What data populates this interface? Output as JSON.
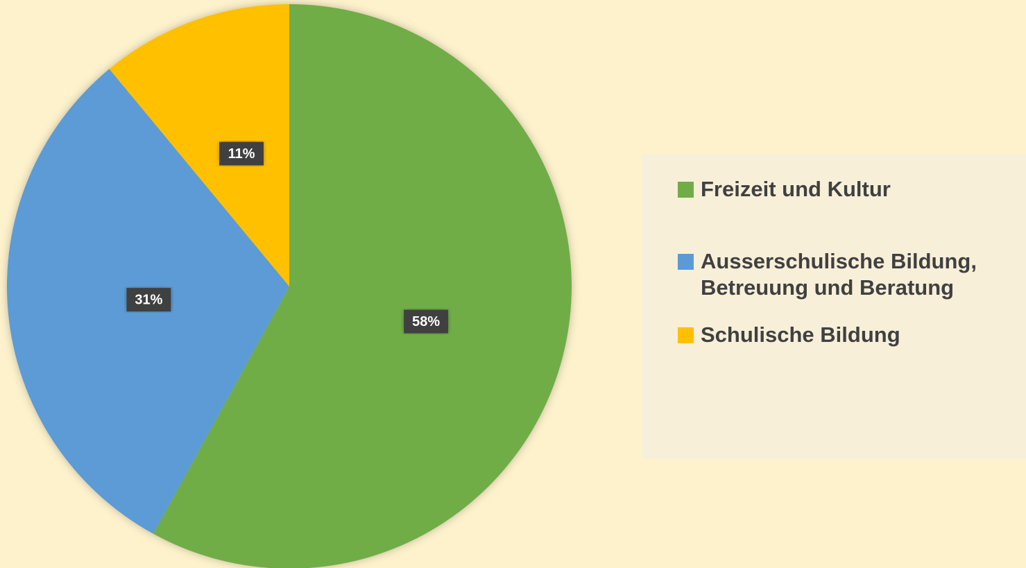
{
  "chart_data": {
    "type": "pie",
    "categories": [
      "Freizeit und Kultur",
      "Ausserschulische Bildung, Betreuung und Beratung",
      "Schulische Bildung"
    ],
    "values": [
      58,
      31,
      11
    ],
    "value_labels": [
      "58%",
      "31%",
      "11%"
    ],
    "colors": [
      "#70ad47",
      "#5b9bd5",
      "#ffc000"
    ],
    "legend": "right"
  }
}
